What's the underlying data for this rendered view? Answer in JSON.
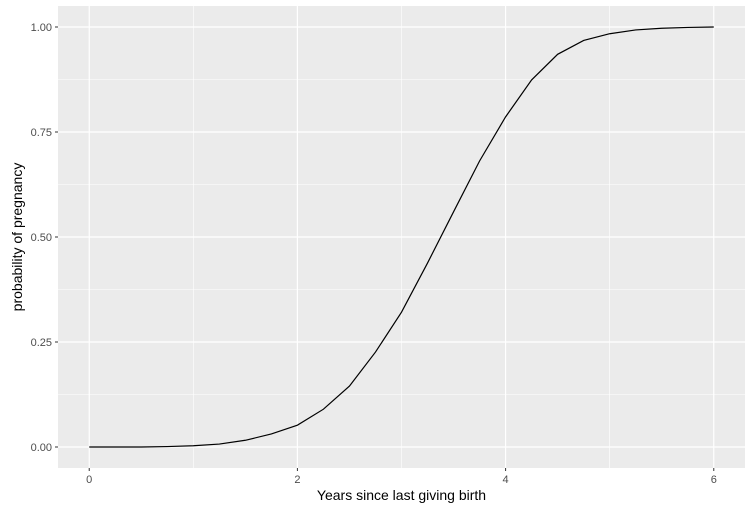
{
  "chart_data": {
    "type": "line",
    "title": "",
    "xlabel": "Years since last giving birth",
    "ylabel": "probability of pregnancy",
    "xlim": [
      -0.3,
      6.3
    ],
    "ylim": [
      -0.05,
      1.05
    ],
    "x_ticks": [
      0,
      2,
      4,
      6
    ],
    "x_tick_labels": [
      "0",
      "2",
      "4",
      "6"
    ],
    "y_ticks": [
      0,
      0.25,
      0.5,
      0.75,
      1
    ],
    "y_tick_labels": [
      "0.00",
      "0.25",
      "0.50",
      "0.75",
      "1.00"
    ],
    "grid": true,
    "legend": "none",
    "panel_background": "#EBEBEB",
    "line_color": "#000000",
    "series": [
      {
        "x": [
          0,
          0.25,
          0.5,
          0.75,
          1.0,
          1.25,
          1.5,
          1.75,
          2.0,
          2.25,
          2.5,
          2.75,
          3.0,
          3.25,
          3.5,
          3.75,
          4.0,
          4.25,
          4.5,
          4.75,
          5.0,
          5.25,
          5.5,
          5.75,
          6.0
        ],
        "values": [
          0.0,
          0.0,
          0.0,
          0.001,
          0.003,
          0.007,
          0.016,
          0.031,
          0.052,
          0.09,
          0.145,
          0.226,
          0.321,
          0.438,
          0.56,
          0.681,
          0.786,
          0.874,
          0.935,
          0.968,
          0.984,
          0.993,
          0.997,
          0.999,
          1.0
        ]
      }
    ]
  }
}
